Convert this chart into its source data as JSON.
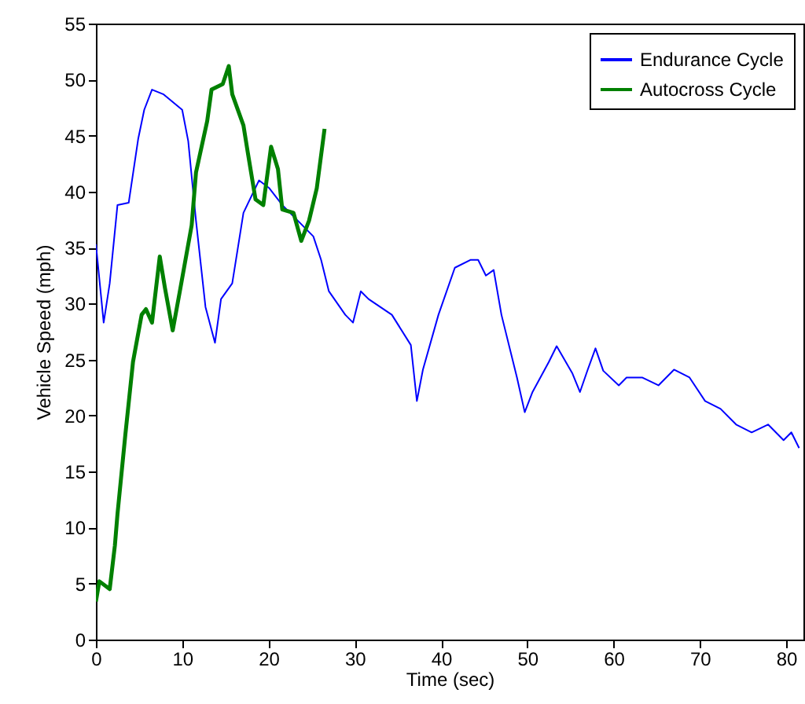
{
  "chart_data": {
    "type": "line",
    "xlabel": "Time (sec)",
    "ylabel": "Vehicle Speed (mph)",
    "xlim": [
      0,
      82
    ],
    "ylim": [
      0,
      55
    ],
    "xticks": [
      0,
      10,
      20,
      30,
      40,
      50,
      60,
      70,
      80
    ],
    "yticks": [
      0,
      5,
      10,
      15,
      20,
      25,
      30,
      35,
      40,
      45,
      50,
      55
    ],
    "grid": false,
    "legend": "top right",
    "marker": "none",
    "line_style": "solid",
    "series": [
      {
        "name": "Endurance Cycle",
        "color": "#0000ff",
        "x": [
          0,
          0.9,
          1.6,
          2.5,
          3.8,
          4.9,
          5.6,
          6.5,
          7.8,
          10.0,
          10.7,
          11.6,
          12.7,
          13.8,
          14.5,
          15.8,
          17.1,
          18.9,
          20.1,
          21.6,
          23.4,
          25.2,
          26.1,
          27.0,
          28.9,
          29.8,
          30.7,
          31.6,
          34.3,
          36.5,
          37.2,
          37.9,
          39.7,
          41.6,
          43.4,
          44.3,
          45.2,
          46.1,
          47.0,
          48.8,
          49.7,
          50.6,
          52.5,
          53.4,
          55.2,
          56.1,
          57.0,
          57.9,
          58.8,
          60.6,
          61.5,
          63.3,
          65.2,
          67.0,
          68.8,
          70.6,
          72.4,
          74.2,
          76.0,
          77.9,
          79.7,
          80.6,
          81.5
        ],
        "values": [
          35.3,
          28.3,
          31.8,
          38.8,
          39,
          44.7,
          47.3,
          49.1,
          48.7,
          47.3,
          44.5,
          37.4,
          29.7,
          26.5,
          30.4,
          31.8,
          38.1,
          41,
          40.3,
          38.8,
          37.4,
          36,
          33.9,
          31.1,
          29,
          28.3,
          31.1,
          30.4,
          29,
          26.3,
          21.3,
          24.1,
          29,
          33.2,
          33.9,
          33.9,
          32.5,
          33,
          29,
          23.4,
          20.3,
          22.1,
          24.8,
          26.2,
          23.8,
          22.1,
          24.1,
          26,
          24,
          22.7,
          23.4,
          23.4,
          22.7,
          24.1,
          23.4,
          21.3,
          20.6,
          19.2,
          18.5,
          19.2,
          17.8,
          18.5,
          17.1
        ]
      },
      {
        "name": "Autocross Cycle",
        "color": "#008000",
        "x": [
          0,
          0.4,
          1.6,
          2.2,
          2.5,
          3.4,
          4.3,
          5.3,
          5.8,
          6.5,
          7.4,
          8.0,
          8.9,
          9.8,
          11.1,
          11.6,
          12.9,
          13.4,
          14.7,
          15.4,
          15.8,
          17.1,
          17.6,
          18.5,
          19.4,
          20.3,
          21.1,
          21.6,
          22.9,
          23.8,
          24.7,
          25.6,
          26.5
        ],
        "values": [
          3.4,
          5.2,
          4.5,
          8.4,
          11.2,
          18.2,
          24.8,
          29,
          29.5,
          28.3,
          34.2,
          31.4,
          27.6,
          31.4,
          37,
          41.7,
          46.3,
          49.1,
          49.6,
          51.2,
          48.7,
          45.9,
          43.5,
          39.3,
          38.8,
          44,
          42,
          38.4,
          38.1,
          35.6,
          37.4,
          40.3,
          45.6
        ]
      }
    ]
  }
}
